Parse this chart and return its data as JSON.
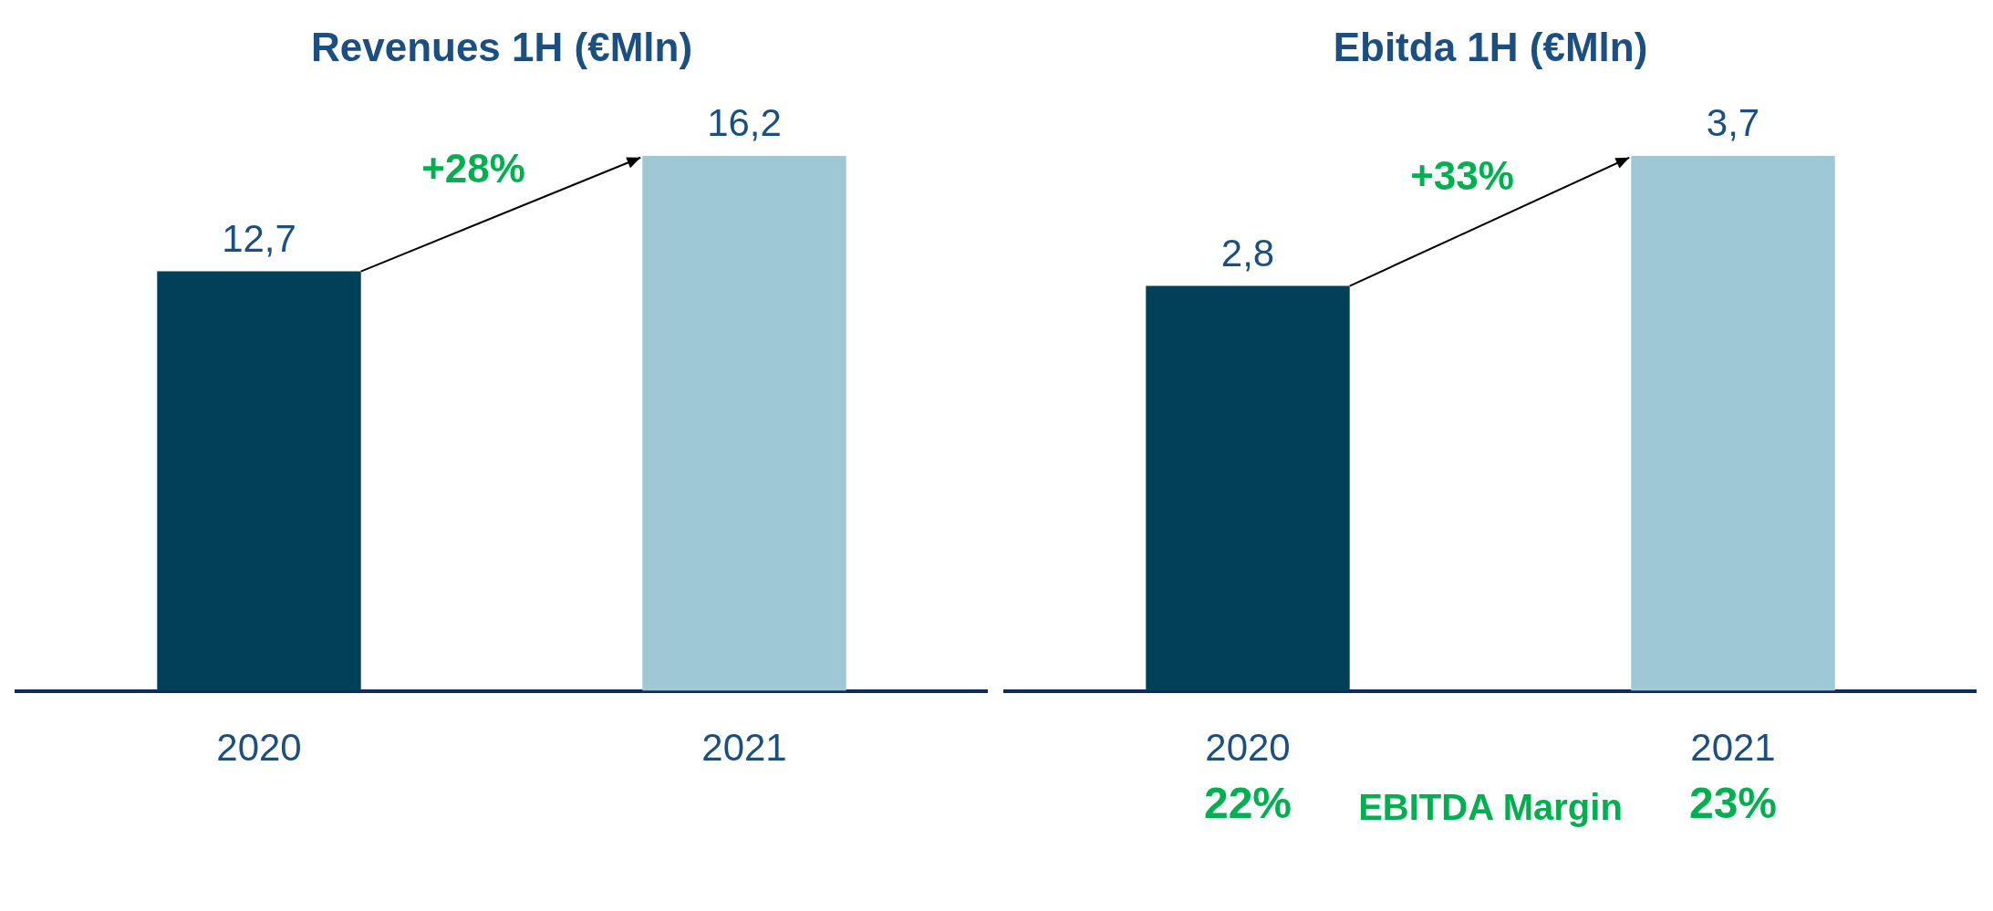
{
  "chart_data": [
    {
      "type": "bar",
      "title": "Revenues 1H (€Mln)",
      "categories": [
        "2020",
        "2021"
      ],
      "values": [
        12.7,
        16.2
      ],
      "colors": [
        "#02405a",
        "#9ec8d4"
      ],
      "value_labels": [
        "12,7",
        "16,2"
      ],
      "annotations": [
        "+28%"
      ],
      "legend": false,
      "grid": false
    },
    {
      "type": "bar",
      "title": "Ebitda 1H (€Mln)",
      "categories": [
        "2020",
        "2021"
      ],
      "values": [
        2.8,
        3.7
      ],
      "colors": [
        "#02405a",
        "#9ec8d4"
      ],
      "value_labels": [
        "2,8",
        "3,7"
      ],
      "annotations": [
        "+33%",
        "22%",
        "EBITDA Margin",
        "23%"
      ],
      "legend": false,
      "grid": false
    }
  ]
}
